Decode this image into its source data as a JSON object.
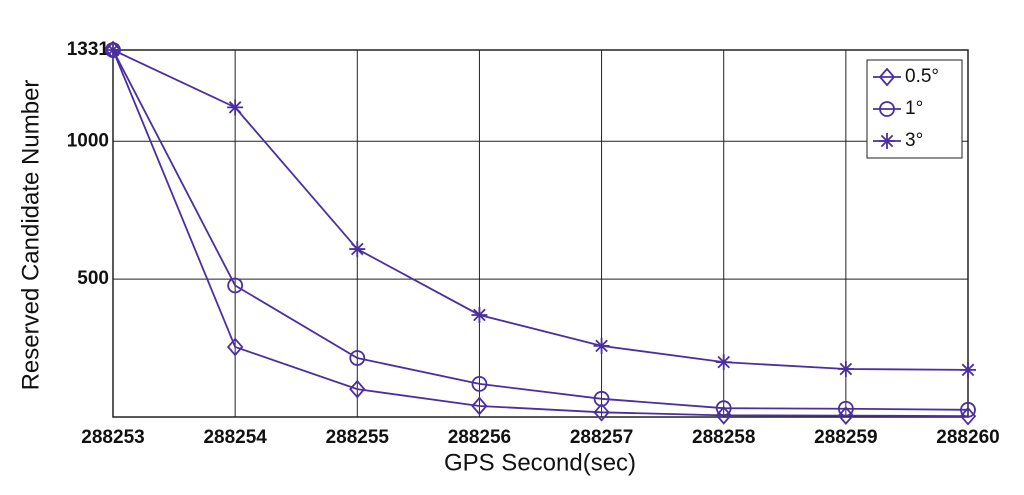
{
  "chart_data": {
    "type": "line",
    "x_label": "GPS Second(sec)",
    "y_label": "Reserved Candidate Number",
    "x": [
      288253,
      288254,
      288255,
      288256,
      288257,
      288258,
      288259,
      288260
    ],
    "xlim": [
      288253,
      288260
    ],
    "xticks": [
      288253,
      288254,
      288255,
      288256,
      288257,
      288258,
      288259,
      288260
    ],
    "ylim": [
      0,
      1331
    ],
    "yticks": [
      500,
      1000,
      1331
    ],
    "grid": true,
    "legend": "upper right",
    "series": [
      {
        "name": "0.5°",
        "color": "#4b2fa0",
        "marker": "diamond",
        "values": [
          1331,
          254,
          101,
          40,
          17,
          6,
          5,
          3
        ]
      },
      {
        "name": "1°",
        "color": "#4b2fa0",
        "marker": "circle",
        "values": [
          1331,
          477,
          214,
          120,
          66,
          32,
          30,
          26
        ]
      },
      {
        "name": "3°",
        "color": "#4b2fa0",
        "marker": "star",
        "values": [
          1331,
          1123,
          609,
          370,
          258,
          199,
          174,
          171
        ]
      }
    ]
  }
}
